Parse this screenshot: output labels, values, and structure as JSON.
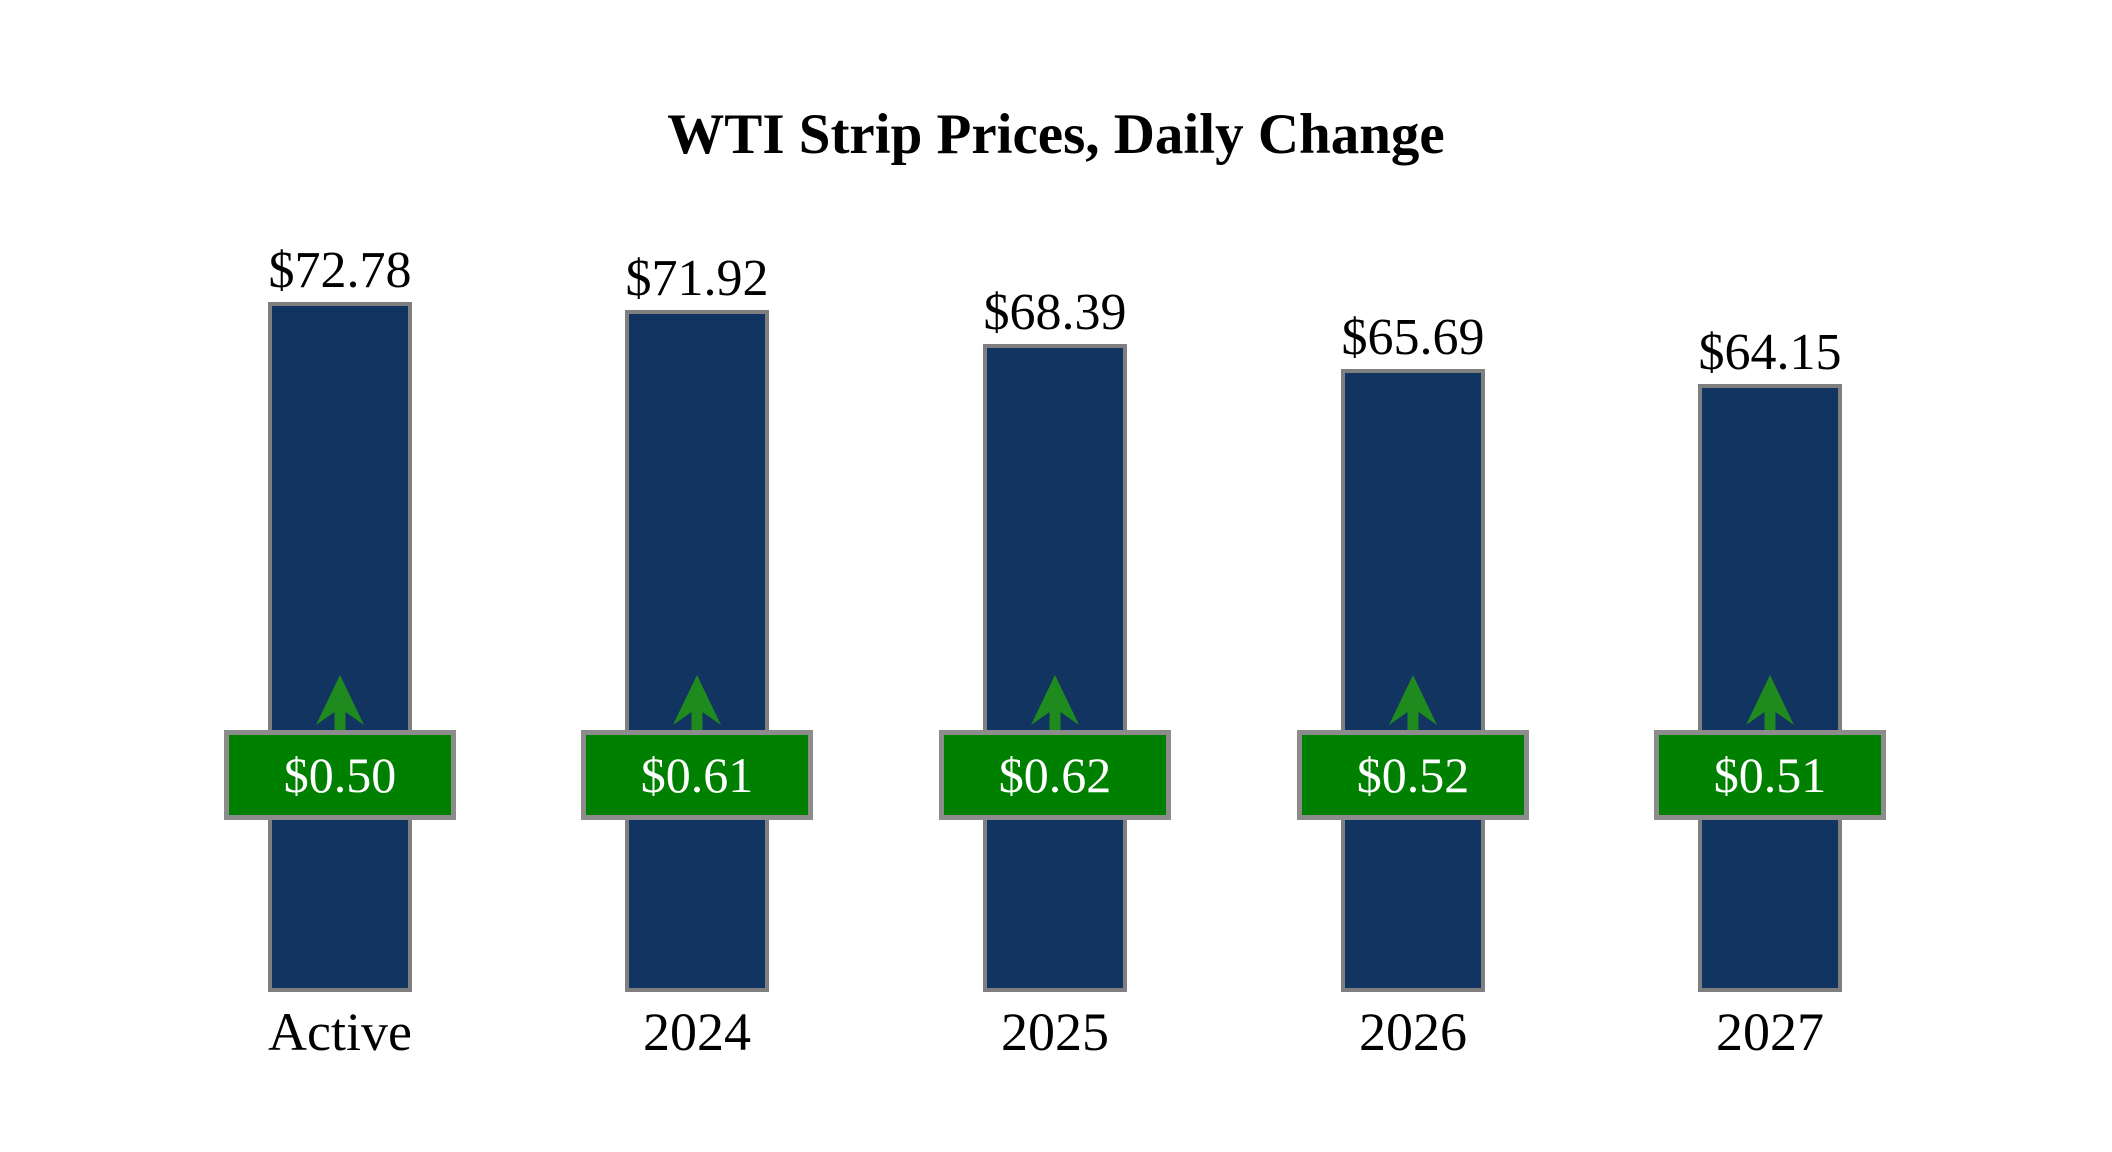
{
  "chart_data": {
    "type": "bar",
    "title": "WTI Strip Prices, Daily Change",
    "xlabel": "",
    "ylabel": "",
    "ylim": [
      0,
      76
    ],
    "grid": false,
    "legend": "none",
    "value_prefix": "$",
    "categories": [
      "Active",
      "2024",
      "2025",
      "2026",
      "2027"
    ],
    "series": [
      {
        "name": "Strip Price",
        "values": [
          72.78,
          71.92,
          68.39,
          65.69,
          64.15
        ]
      },
      {
        "name": "Daily Change",
        "values": [
          0.5,
          0.61,
          0.62,
          0.52,
          0.51
        ]
      }
    ],
    "bars": [
      {
        "category": "Active",
        "value": 72.78,
        "value_label": "$72.78",
        "change": 0.5,
        "change_label": "$0.50",
        "direction": "up"
      },
      {
        "category": "2024",
        "value": 71.92,
        "value_label": "$71.92",
        "change": 0.61,
        "change_label": "$0.61",
        "direction": "up"
      },
      {
        "category": "2025",
        "value": 68.39,
        "value_label": "$68.39",
        "change": 0.62,
        "change_label": "$0.62",
        "direction": "up"
      },
      {
        "category": "2026",
        "value": 65.69,
        "value_label": "$65.69",
        "change": 0.52,
        "change_label": "$0.52",
        "direction": "up"
      },
      {
        "category": "2027",
        "value": 64.15,
        "value_label": "$64.15",
        "change": 0.51,
        "change_label": "$0.51",
        "direction": "up"
      }
    ],
    "colors": {
      "bar_fill": "#113560",
      "bar_border": "#7f7f7f",
      "change_fill": "#008000",
      "change_border": "#8c8c8c",
      "arrow": "#1f8b1f",
      "change_text": "#ffffff",
      "text": "#000000",
      "background": "#ffffff"
    }
  }
}
